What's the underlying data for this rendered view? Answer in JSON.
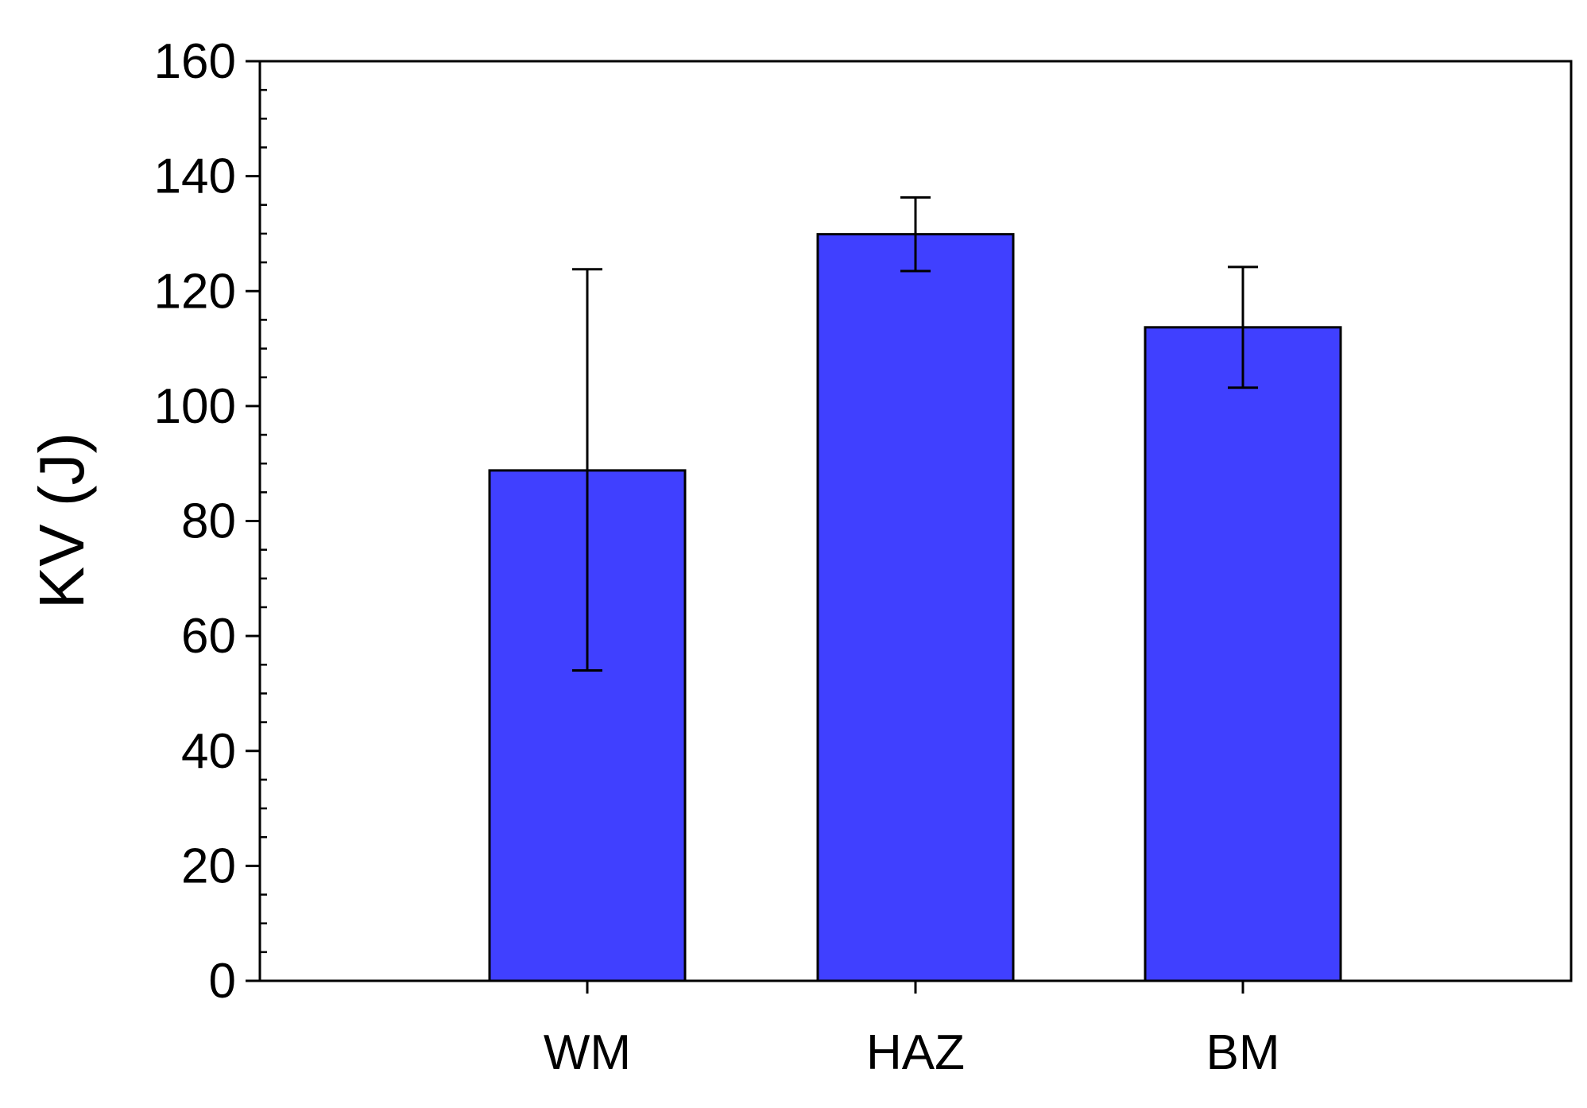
{
  "chart_data": {
    "type": "bar",
    "title": "",
    "xlabel": "",
    "ylabel": "KV (J)",
    "categories": [
      "WM",
      "HAZ",
      "BM"
    ],
    "values": [
      88.8,
      129.9,
      113.7
    ],
    "error_bars": [
      {
        "low": 54.0,
        "high": 123.8
      },
      {
        "low": 123.5,
        "high": 136.3
      },
      {
        "low": 103.2,
        "high": 124.2
      }
    ],
    "ylim": [
      0,
      160
    ],
    "y_ticks": [
      0,
      20,
      40,
      60,
      80,
      100,
      120,
      140,
      160
    ],
    "y_minor_step": 5,
    "grid": false,
    "legend": "none",
    "bar_color": "#4040FF",
    "edge_color": "#000000"
  }
}
